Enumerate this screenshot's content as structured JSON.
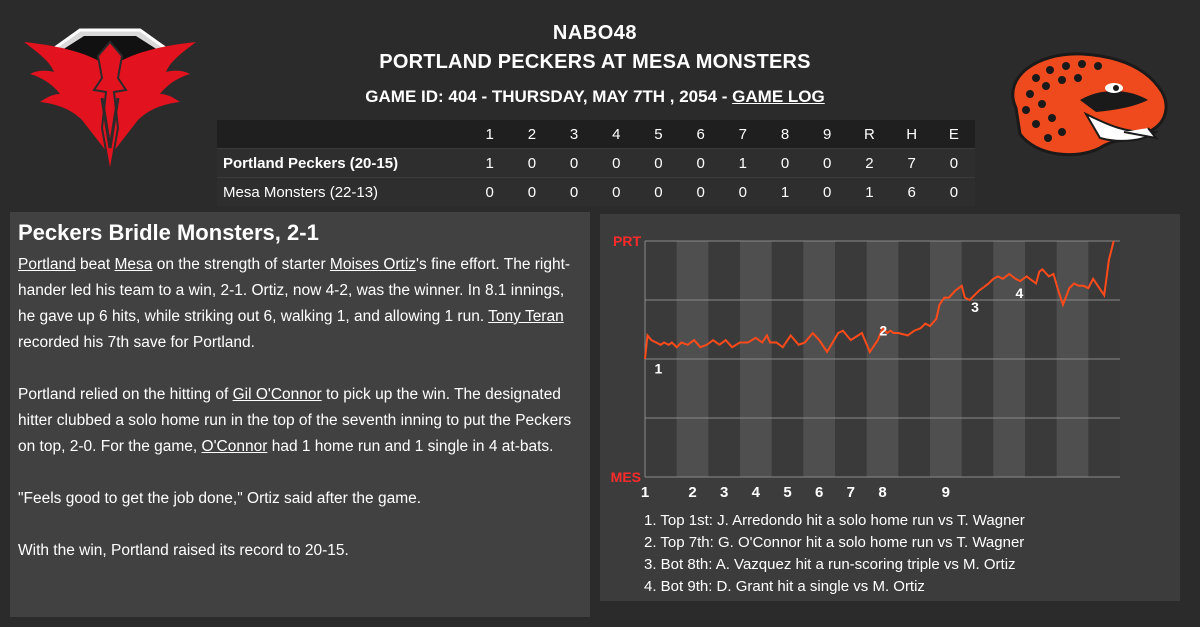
{
  "header": {
    "league": "NABO48",
    "matchup": "PORTLAND PECKERS AT MESA MONSTERS",
    "game_info": "GAME ID: 404 - THURSDAY, MAY 7TH , 2054 - ",
    "game_log_link": "GAME LOG"
  },
  "logos": {
    "left": "phoenix-logo",
    "right": "gila-monster-logo",
    "left_color": "#e2121e",
    "right_color": "#ef4a1d"
  },
  "linescore": {
    "columns": [
      "1",
      "2",
      "3",
      "4",
      "5",
      "6",
      "7",
      "8",
      "9",
      "R",
      "H",
      "E"
    ],
    "rows": [
      {
        "team": "Portland Peckers (20-15)",
        "values": [
          "1",
          "0",
          "0",
          "0",
          "0",
          "0",
          "1",
          "0",
          "0",
          "2",
          "7",
          "0"
        ]
      },
      {
        "team": "Mesa Monsters (22-13)",
        "values": [
          "0",
          "0",
          "0",
          "0",
          "0",
          "0",
          "0",
          "1",
          "0",
          "1",
          "6",
          "0"
        ]
      }
    ]
  },
  "story": {
    "headline": "Peckers Bridle Monsters, 2-1",
    "p1": {
      "team1": "Portland",
      "t1": " beat ",
      "team2": "Mesa",
      "t2": " on the strength of starter ",
      "pitcher": "Moises Ortiz",
      "t3": "'s fine effort. The right-hander led his team to a win, 2-1. Ortiz, now 4-2, was the winner. In 8.1 innings, he gave up 6 hits, while striking out 6, walking 1, and allowing 1 run. ",
      "closer": "Tony Teran",
      "t4": " recorded his 7th save for Portland."
    },
    "p2": {
      "t1": "Portland relied on the hitting of ",
      "hitter": "Gil O'Connor",
      "t2": " to pick up the win. The designated hitter clubbed a solo home run in the top of the seventh inning to put the Peckers on top, 2-0. For the game, ",
      "hitter_short": "O'Connor",
      "t3": " had 1 home run and 1 single in 4 at-bats."
    },
    "p3": "\"Feels good to get the job done,\" Ortiz said after the game.",
    "p4": "With the win, Portland raised its record to 20-15."
  },
  "chart_data": {
    "type": "line",
    "y_top_label": "PRT",
    "y_bottom_label": "MES",
    "x_tick_labels": [
      "1",
      "2",
      "3",
      "4",
      "5",
      "6",
      "7",
      "8",
      "9"
    ],
    "ylim": [
      0,
      1
    ],
    "series": [
      {
        "color": "#ff4a1a",
        "x": [
          0,
          0.08,
          0.2,
          0.35,
          0.5,
          0.6,
          0.75,
          0.85,
          1,
          1.15,
          1.35,
          1.55,
          1.75,
          1.95,
          2.15,
          2.35,
          2.55,
          2.75,
          3,
          3.25,
          3.5,
          3.7,
          3.85,
          3.95,
          4.15,
          4.35,
          4.6,
          4.85,
          5.05,
          5.3,
          5.5,
          5.75,
          6.1,
          6.25,
          6.5,
          6.85,
          7.1,
          7.35,
          7.5,
          7.65,
          7.75,
          7.85,
          8,
          8.3,
          8.5,
          8.7,
          8.85,
          9,
          9.2,
          9.3,
          9.45,
          9.6,
          9.8,
          10,
          10.1,
          10.25,
          10.55,
          10.85,
          11,
          11.15,
          11.3,
          11.5,
          11.7,
          11.85,
          12.05,
          12.35,
          12.45,
          12.55,
          12.75,
          12.9,
          13.05,
          13.2,
          13.4,
          13.55,
          13.7,
          13.85,
          14,
          14.15,
          14.35,
          14.5,
          14.65,
          14.8
        ],
        "y": [
          0.5,
          0.6,
          0.58,
          0.57,
          0.56,
          0.57,
          0.56,
          0.57,
          0.55,
          0.57,
          0.56,
          0.58,
          0.55,
          0.56,
          0.58,
          0.56,
          0.58,
          0.55,
          0.57,
          0.57,
          0.59,
          0.57,
          0.6,
          0.57,
          0.57,
          0.55,
          0.6,
          0.56,
          0.57,
          0.61,
          0.58,
          0.53,
          0.61,
          0.62,
          0.58,
          0.61,
          0.53,
          0.58,
          0.63,
          0.61,
          0.62,
          0.61,
          0.61,
          0.6,
          0.62,
          0.63,
          0.65,
          0.64,
          0.67,
          0.73,
          0.76,
          0.76,
          0.79,
          0.81,
          0.76,
          0.75,
          0.79,
          0.82,
          0.84,
          0.85,
          0.84,
          0.86,
          0.84,
          0.83,
          0.85,
          0.82,
          0.87,
          0.88,
          0.85,
          0.86,
          0.79,
          0.73,
          0.8,
          0.82,
          0.81,
          0.81,
          0.8,
          0.84,
          0.8,
          0.77,
          0.92,
          1.0
        ]
      }
    ],
    "event_markers": [
      "1",
      "2",
      "3",
      "4"
    ],
    "events": [
      "1. Top 1st: J. Arredondo hit a solo home run vs T. Wagner",
      "2. Top 7th: G. O'Connor hit a solo home run vs T. Wagner",
      "3. Bot 8th: A. Vazquez hit a run-scoring triple vs M. Ortiz",
      "4. Bot 9th: D. Grant hit a single vs M. Ortiz"
    ]
  }
}
